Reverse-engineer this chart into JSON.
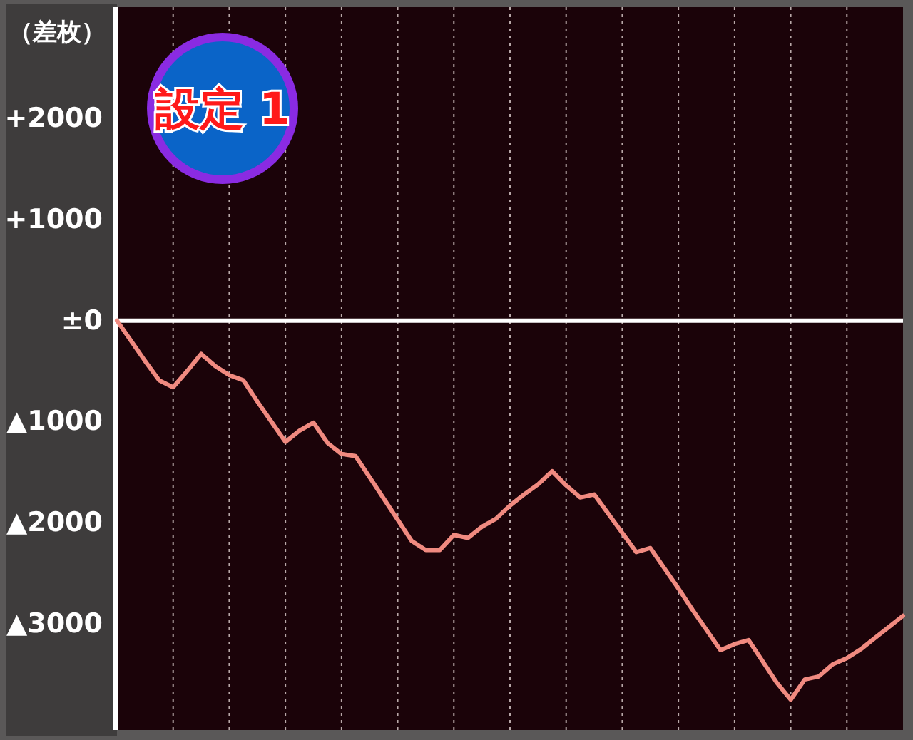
{
  "chart_data": {
    "type": "line",
    "ylabel": "（差枚）",
    "annotations": [
      "設定 1"
    ],
    "categories": [
      null,
      null,
      null,
      null,
      null,
      null,
      null,
      null,
      null,
      null,
      null,
      null,
      null,
      null,
      null,
      null,
      null,
      null,
      null,
      null,
      null,
      null,
      null,
      null,
      null,
      null,
      null,
      null,
      null,
      null,
      null,
      null,
      null,
      null,
      null,
      null,
      null,
      null,
      null,
      null,
      null,
      null,
      null,
      null,
      null,
      null,
      null,
      null,
      null,
      null,
      null,
      null,
      null,
      null,
      null,
      null,
      null
    ],
    "series": [
      {
        "color": "#f08a80",
        "values": [
          0,
          -200,
          -400,
          -590,
          -660,
          -500,
          -330,
          -450,
          -540,
          -590,
          -800,
          -1000,
          -1200,
          -1090,
          -1010,
          -1210,
          -1320,
          -1340,
          -1550,
          -1760,
          -1970,
          -2180,
          -2270,
          -2270,
          -2120,
          -2150,
          -2040,
          -1960,
          -1830,
          -1720,
          -1620,
          -1490,
          -1630,
          -1750,
          -1720,
          -1910,
          -2100,
          -2290,
          -2250,
          -2450,
          -2650,
          -2860,
          -3060,
          -3260,
          -3200,
          -3160,
          -3370,
          -3580,
          -3750,
          -3550,
          -3520,
          -3400,
          -3340,
          -3250,
          -3140,
          -3030,
          -2920
        ]
      }
    ],
    "ylim": [
      -4050,
      3100
    ],
    "yticks": [
      {
        "value": 2000,
        "label": "+2000"
      },
      {
        "value": 1000,
        "label": "+1000"
      },
      {
        "value": 0,
        "label": "±0"
      },
      {
        "value": -1000,
        "label": "▲1000"
      },
      {
        "value": -2000,
        "label": "▲2000"
      },
      {
        "value": -3000,
        "label": "▲3000"
      }
    ],
    "ref_lines": [
      {
        "axis": "y",
        "value": 0,
        "color": "#ffffff",
        "line_style": "solid"
      }
    ],
    "grid": "x",
    "line_style": "solid",
    "tick_labels": "y"
  }
}
